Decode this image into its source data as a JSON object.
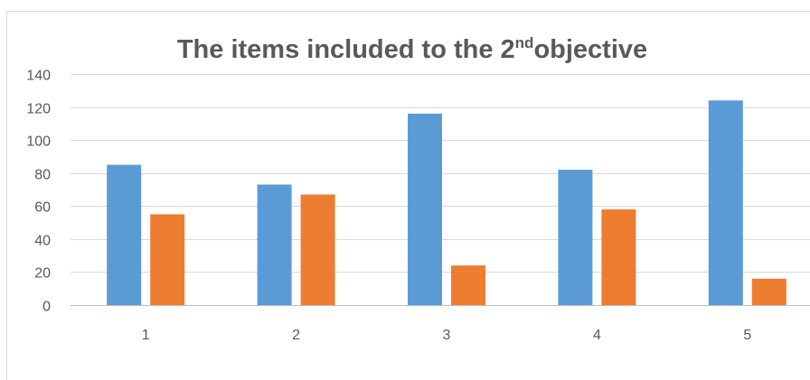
{
  "chart_data": {
    "type": "bar",
    "title": {
      "before": "The items included to the 2",
      "superscript": "nd",
      "after": "objective"
    },
    "xlabel": "",
    "ylabel": "",
    "categories": [
      "1",
      "2",
      "3",
      "4",
      "5"
    ],
    "series": [
      {
        "color": "#5b9bd5",
        "values": [
          85,
          73,
          116,
          82,
          124
        ]
      },
      {
        "color": "#ed7d31",
        "values": [
          55,
          67,
          24,
          58,
          16
        ]
      }
    ],
    "ylim": [
      0,
      140
    ],
    "yticks": [
      "0",
      "20",
      "40",
      "60",
      "80",
      "100",
      "120",
      "140"
    ],
    "grid": true,
    "legend": "none"
  }
}
